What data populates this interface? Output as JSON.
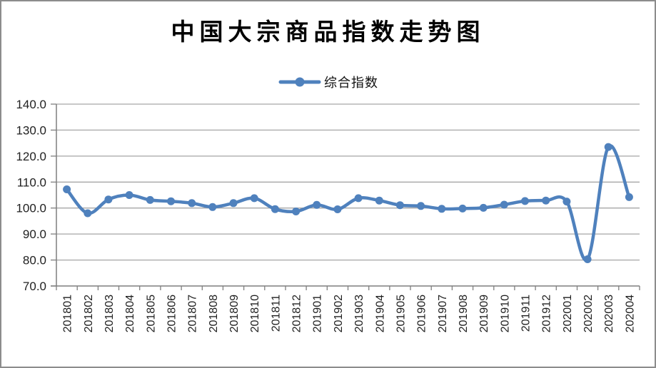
{
  "window": {
    "background": "#ffffff",
    "border_color": "#8c8c8c"
  },
  "chart_data": {
    "type": "line",
    "title": "中国大宗商品指数走势图",
    "categories": [
      "201801",
      "201802",
      "201803",
      "201804",
      "201805",
      "201806",
      "201807",
      "201808",
      "201809",
      "201810",
      "201811",
      "201812",
      "201901",
      "201902",
      "201903",
      "201904",
      "201905",
      "201906",
      "201907",
      "201908",
      "201909",
      "201910",
      "201911",
      "201912",
      "202001",
      "202002",
      "202003",
      "202004"
    ],
    "series": [
      {
        "name": "综合指数",
        "color": "#4F81BD",
        "values": [
          107.2,
          98.0,
          103.3,
          105.0,
          103.1,
          102.6,
          101.9,
          100.4,
          101.9,
          103.8,
          99.6,
          98.7,
          101.2,
          99.5,
          103.8,
          102.9,
          101.1,
          100.8,
          99.7,
          99.8,
          100.1,
          101.3,
          102.7,
          102.9,
          102.5,
          80.3,
          123.5,
          104.2
        ]
      }
    ],
    "xlabel": "",
    "ylabel": "",
    "ylim": [
      70,
      140
    ],
    "ytick_step": 10,
    "ytick_labels": [
      "140.0",
      "130.0",
      "120.0",
      "110.0",
      "100.0",
      "90.0",
      "80.0",
      "70.0"
    ],
    "grid": true,
    "smoothed_line": true,
    "marker": "circle",
    "legend_position": "top-center",
    "colors": {
      "grid": "#a6a6a6",
      "axis": "#7f7f7f",
      "tick_text": "#1f1f1f",
      "title_text": "#000000"
    }
  }
}
